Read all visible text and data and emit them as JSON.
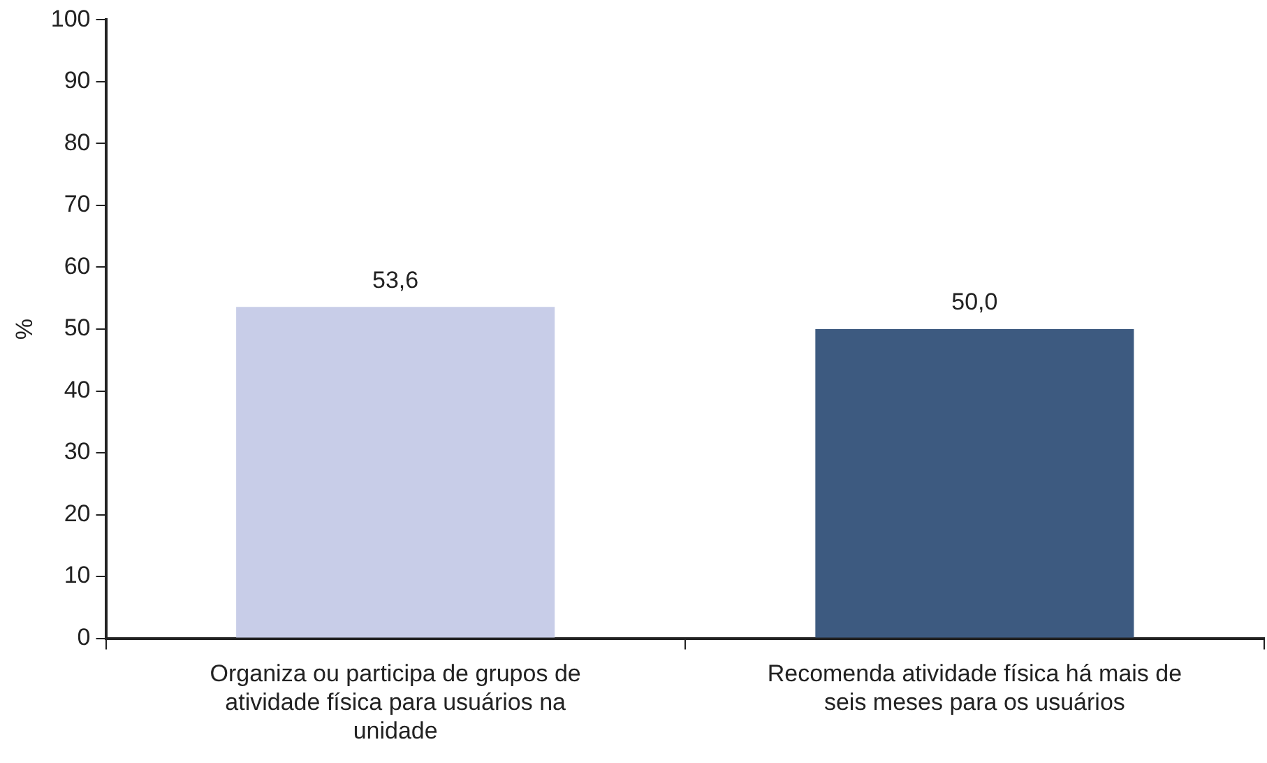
{
  "chart_data": {
    "type": "bar",
    "ylabel": "%",
    "categories": [
      "Organiza ou participa de grupos de atividade física para usuários na unidade",
      "Recomenda atividade física há mais de seis meses para os usuários"
    ],
    "values": [
      53.6,
      50.0
    ],
    "value_labels": [
      "53,6",
      "50,0"
    ],
    "colors": [
      "#c8cde8",
      "#3d5a80"
    ],
    "ylim": [
      0,
      100
    ],
    "yticks": [
      0,
      10,
      20,
      30,
      40,
      50,
      60,
      70,
      80,
      90,
      100
    ],
    "grid": false,
    "legend": false
  }
}
